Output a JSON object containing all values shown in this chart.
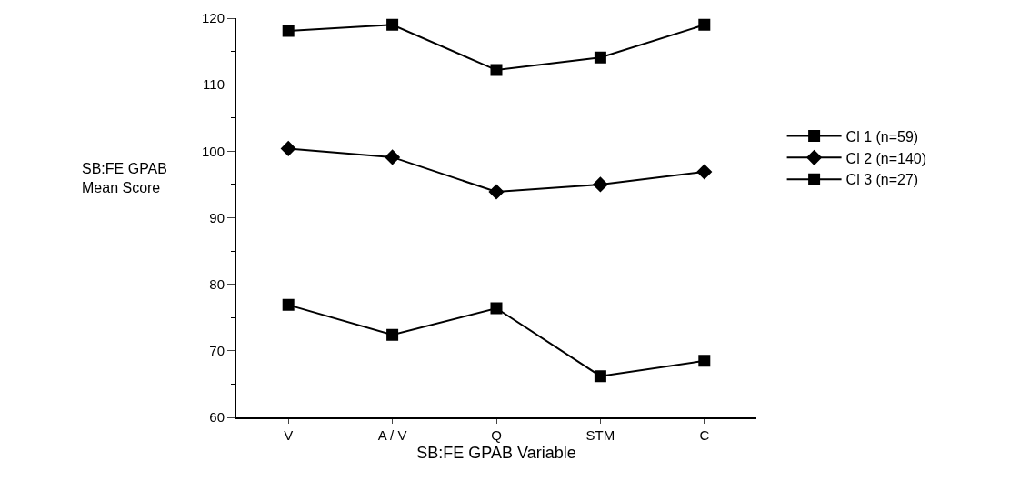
{
  "chart_data": {
    "type": "line",
    "xlabel": "SB:FE GPAB Variable",
    "ylabel": "SB:FE GPAB Mean Score",
    "categories": [
      "V",
      "A / V",
      "Q",
      "STM",
      "C"
    ],
    "series": [
      {
        "name": "Cl 1 (n=59)",
        "color": "#000000",
        "marker": "square",
        "values": [
          118.1,
          119.0,
          112.2,
          114.1,
          119.0
        ]
      },
      {
        "name": "Cl 2 (n=140)",
        "color": "#000000",
        "marker": "diamond",
        "values": [
          100.4,
          99.1,
          93.9,
          95.0,
          96.9
        ]
      },
      {
        "name": "Cl 3 (n=27)",
        "color": "#000000",
        "marker": "square",
        "values": [
          76.9,
          72.4,
          76.4,
          66.2,
          68.5
        ]
      }
    ],
    "ylim": [
      60,
      120
    ],
    "yticks": [
      60,
      70,
      80,
      90,
      100,
      110,
      120
    ],
    "legend": "right",
    "line_style": "solid"
  }
}
